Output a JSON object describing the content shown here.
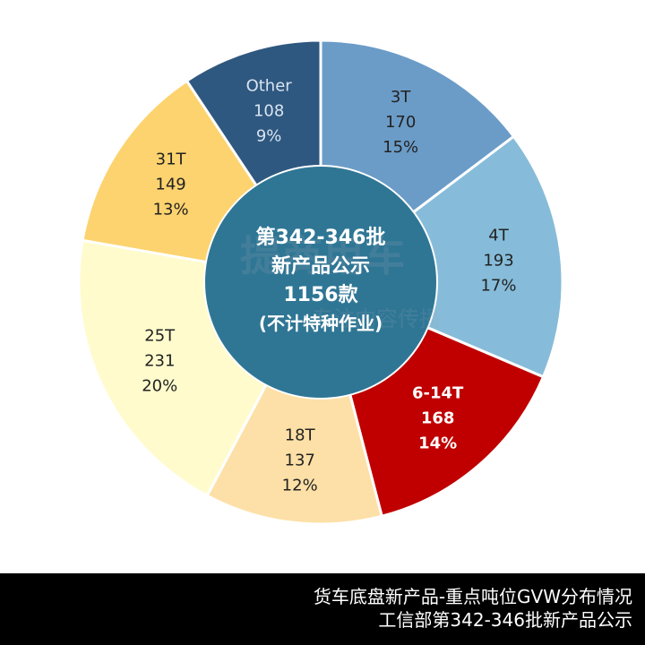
{
  "chart_data": {
    "type": "pie",
    "center_label_lines": [
      "第342-346批",
      "新产品公示",
      "1156款",
      "(不计特种作业)"
    ],
    "slices": [
      {
        "label": "3T",
        "value": 170,
        "percent": "15%",
        "color": "#6b9cc8",
        "text_color": "#222222",
        "bold": false
      },
      {
        "label": "4T",
        "value": 193,
        "percent": "17%",
        "color": "#86bcd9",
        "text_color": "#222222",
        "bold": false
      },
      {
        "label": "6-14T",
        "value": 168,
        "percent": "14%",
        "color": "#c00000",
        "text_color": "#ffffff",
        "bold": true
      },
      {
        "label": "18T",
        "value": 137,
        "percent": "12%",
        "color": "#fde0a7",
        "text_color": "#222222",
        "bold": false
      },
      {
        "label": "25T",
        "value": 231,
        "percent": "20%",
        "color": "#fffbcc",
        "text_color": "#222222",
        "bold": false
      },
      {
        "label": "31T",
        "value": 149,
        "percent": "13%",
        "color": "#fdd36f",
        "text_color": "#222222",
        "bold": false
      },
      {
        "label": "Other",
        "value": 108,
        "percent": "9%",
        "color": "#2f5880",
        "text_color": "#d8e4f0",
        "bold": false
      }
    ],
    "center_color": "#2f7695"
  },
  "footer": {
    "line1": "货车底盘新产品-重点吨位GVW分布情况",
    "line2": "工信部第342-346批新产品公示"
  },
  "watermark": {
    "line1": "提商用车",
    "line2": "专注内容传播"
  }
}
